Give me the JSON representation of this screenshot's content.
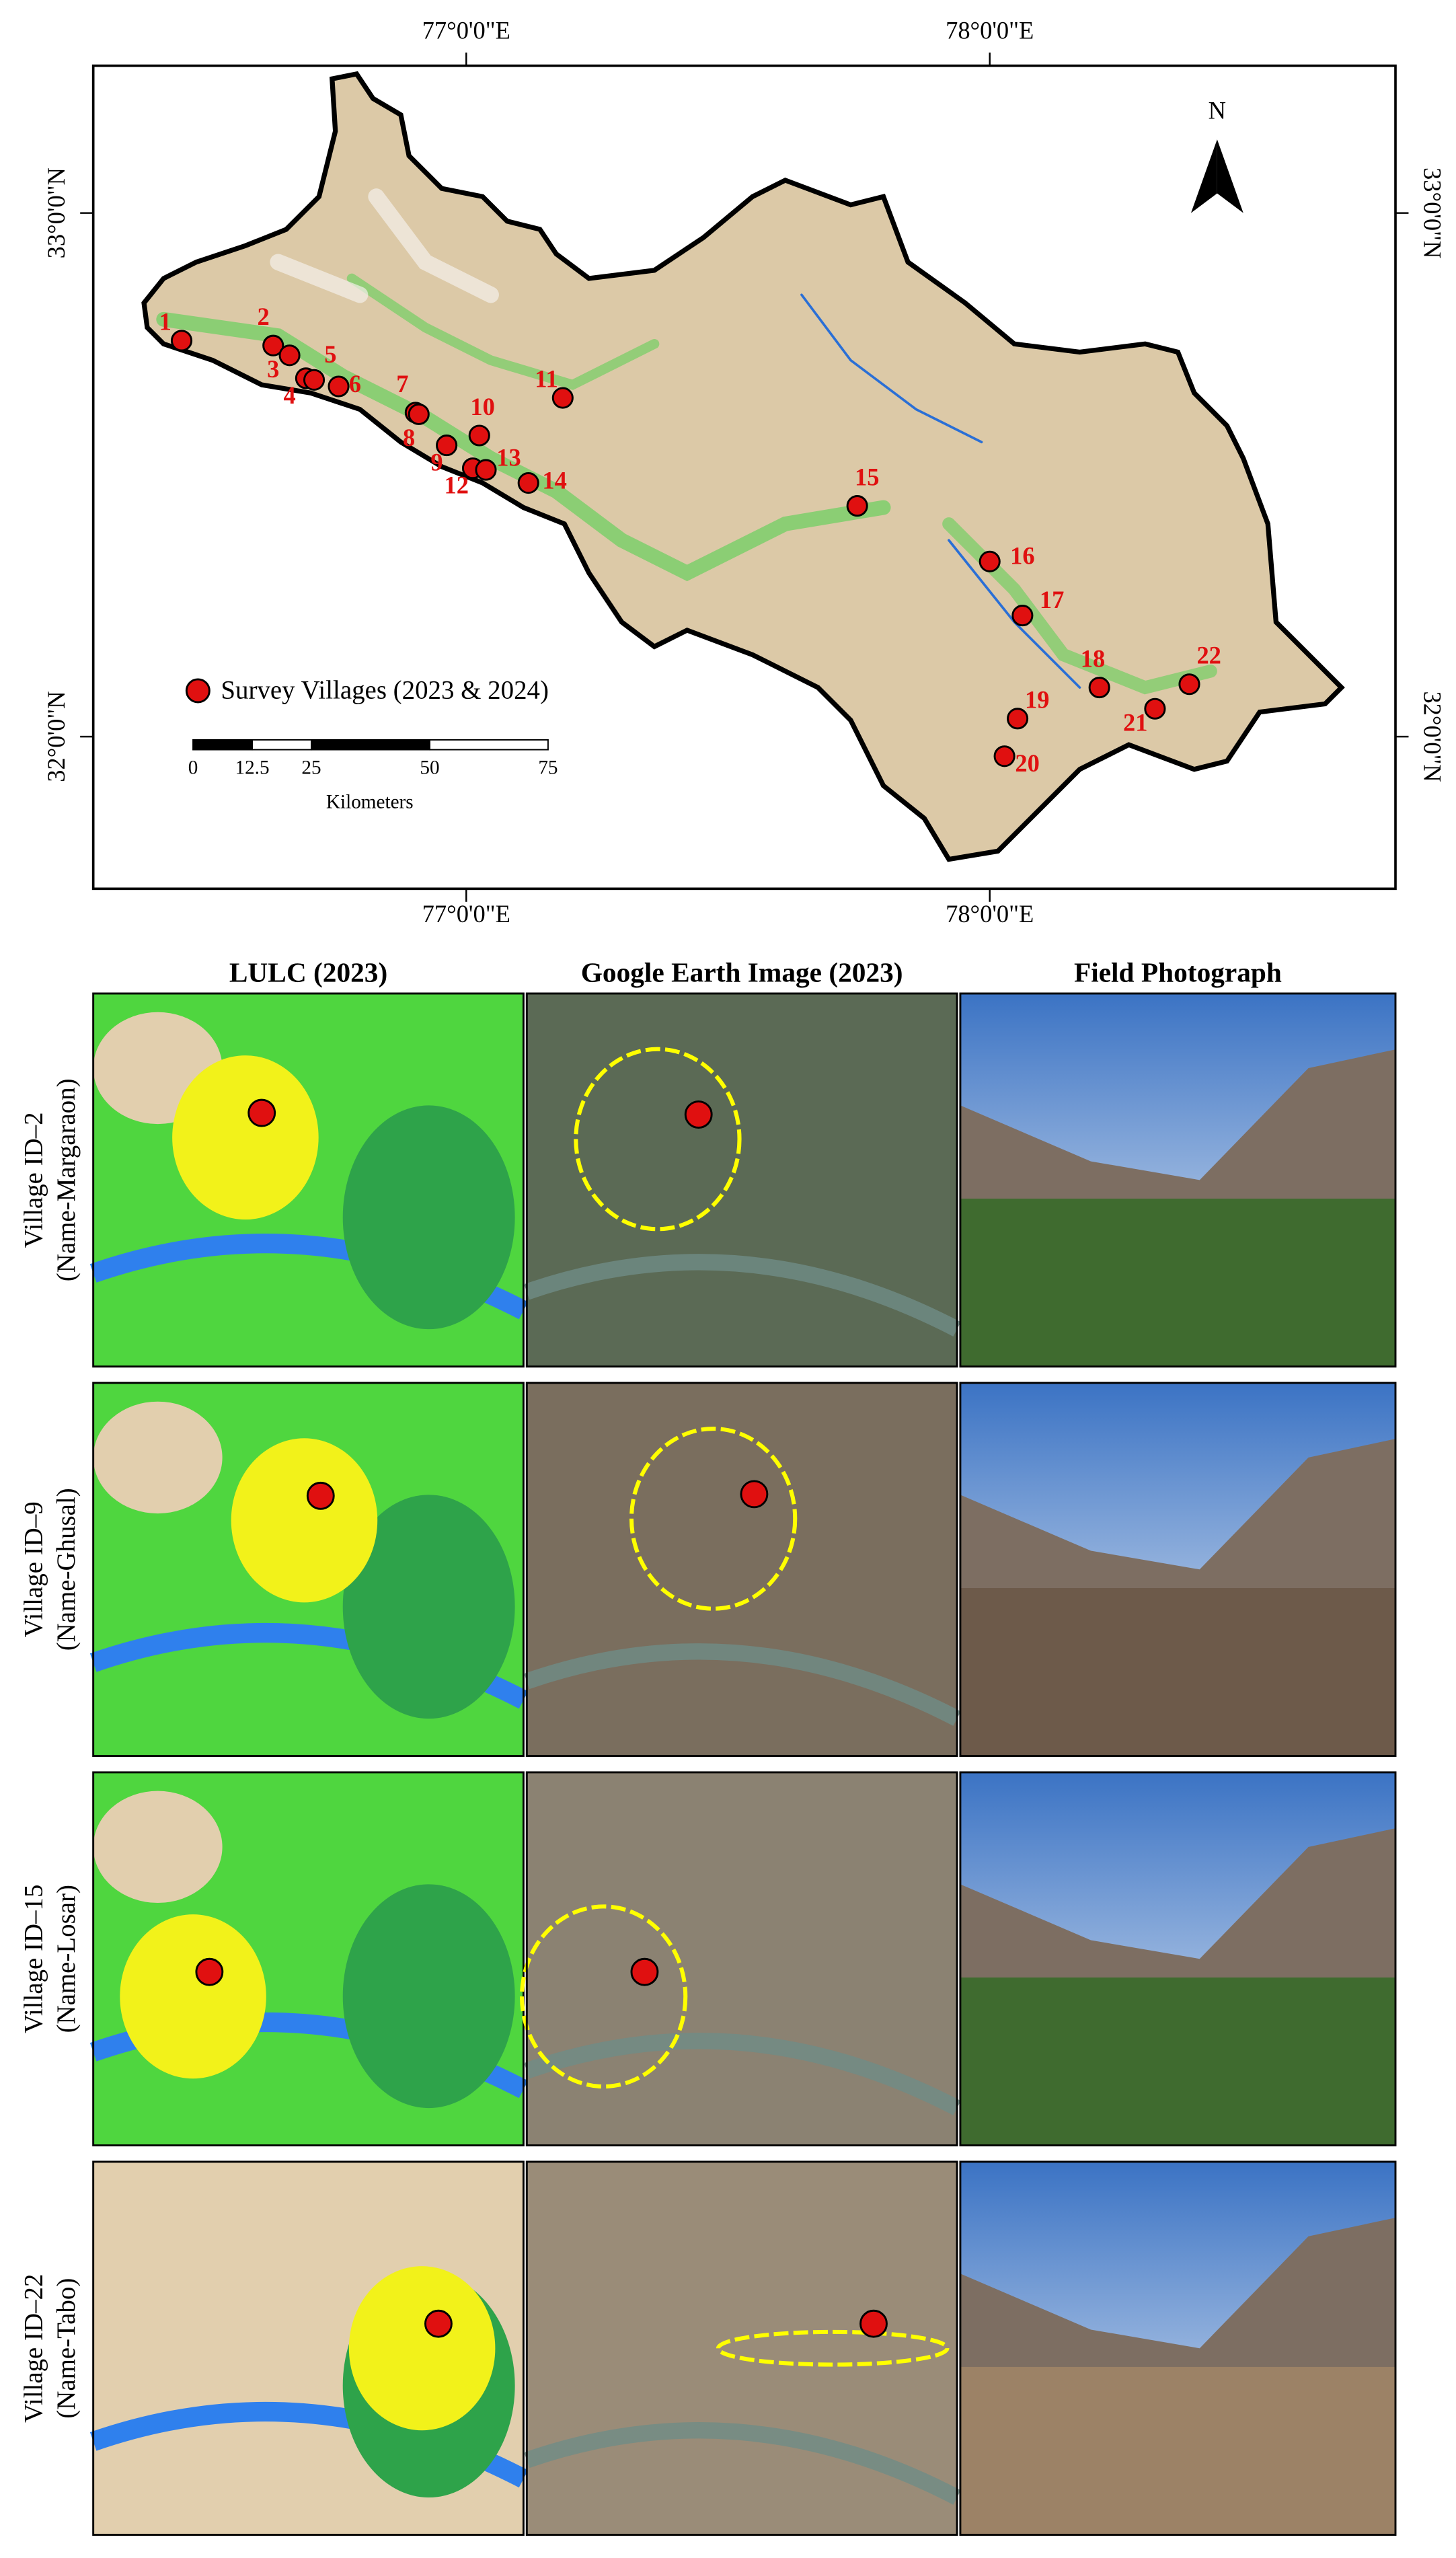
{
  "map": {
    "x_labels": [
      "77°0'0\"E",
      "78°0'0\"E"
    ],
    "y_labels": [
      "33°0'0\"N",
      "32°0'0\"N"
    ],
    "north": "N",
    "villages": [
      "1",
      "2",
      "3",
      "4",
      "5",
      "6",
      "7",
      "8",
      "9",
      "10",
      "11",
      "12",
      "13",
      "14",
      "15",
      "16",
      "17",
      "18",
      "19",
      "20",
      "21",
      "22"
    ],
    "legend": "Survey Villages (2023 & 2024)",
    "scale_bar": {
      "ticks": [
        0,
        12.5,
        25,
        50,
        75
      ],
      "unit": "Kilometers"
    }
  },
  "panels": {
    "columns": [
      "LULC (2023)",
      "Google Earth Image (2023)",
      "Field Photograph"
    ],
    "rows": [
      {
        "id": "Village ID–2",
        "name": "(Name-Margaraon)"
      },
      {
        "id": "Village ID–9",
        "name": "(Name-Ghusal)"
      },
      {
        "id": "Village ID–15",
        "name": "(Name-Losar)"
      },
      {
        "id": "Village ID–22",
        "name": "(Name-Tabo)"
      }
    ]
  }
}
